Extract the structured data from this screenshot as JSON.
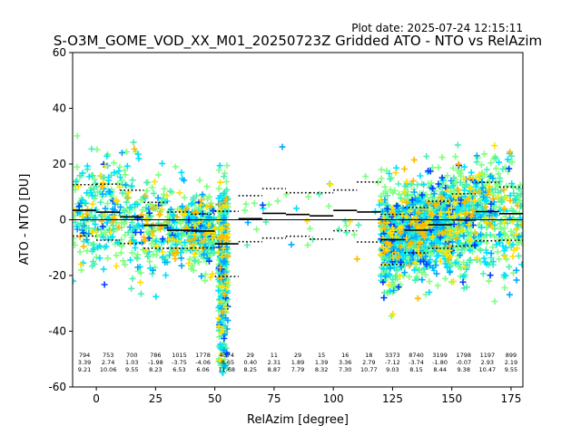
{
  "plot_date": "Plot date: 2025-07-24 12:15:11",
  "chart_data": {
    "type": "scatter",
    "title": "S-O3M_GOME_VOD_XX_M01_20250723Z Gridded ATO - NTO vs RelAzim",
    "xlabel": "RelAzim [degree]",
    "ylabel": "ATO - NTO [DU]",
    "xlim": [
      -10,
      180
    ],
    "ylim": [
      -60,
      60
    ],
    "xticks": [
      0,
      25,
      50,
      75,
      100,
      125,
      150,
      175
    ],
    "yticks": [
      -60,
      -40,
      -20,
      0,
      20,
      40,
      60
    ],
    "grid": false,
    "reference_line": 0,
    "marker": "+",
    "point_colors": [
      "#7fff7f",
      "#48f0b0",
      "#00e0ff",
      "#00a8ff",
      "#0040ff",
      "#ffe000",
      "#ffb800"
    ],
    "bins": [
      {
        "x": -5,
        "n": "794",
        "mean": "3.39",
        "std": "9.21"
      },
      {
        "x": 5,
        "n": "753",
        "mean": "2.74",
        "std": "10.06"
      },
      {
        "x": 15,
        "n": "700",
        "mean": "1.03",
        "std": "9.55"
      },
      {
        "x": 25,
        "n": "786",
        "mean": "-1.98",
        "std": "8.23"
      },
      {
        "x": 35,
        "n": "1015",
        "mean": "-3.75",
        "std": "6.53"
      },
      {
        "x": 45,
        "n": "1778",
        "mean": "-4.06",
        "std": "6.06"
      },
      {
        "x": 55,
        "n": "4374",
        "mean": "-8.65",
        "std": "11.68"
      },
      {
        "x": 65,
        "n": "29",
        "mean": "0.40",
        "std": "8.25"
      },
      {
        "x": 75,
        "n": "11",
        "mean": "2.31",
        "std": "8.87"
      },
      {
        "x": 85,
        "n": "29",
        "mean": "1.89",
        "std": "7.79"
      },
      {
        "x": 95,
        "n": "15",
        "mean": "1.39",
        "std": "8.32"
      },
      {
        "x": 105,
        "n": "16",
        "mean": "3.36",
        "std": "7.30"
      },
      {
        "x": 115,
        "n": "18",
        "mean": "2.79",
        "std": "10.77"
      },
      {
        "x": 125,
        "n": "3373",
        "mean": "-7.12",
        "std": "9.03"
      },
      {
        "x": 135,
        "n": "8740",
        "mean": "-3.74",
        "std": "8.15"
      },
      {
        "x": 145,
        "n": "3199",
        "mean": "-1.80",
        "std": "8.44"
      },
      {
        "x": 155,
        "n": "1798",
        "mean": "-0.07",
        "std": "9.38"
      },
      {
        "x": 165,
        "n": "1197",
        "mean": "2.93",
        "std": "10.47"
      },
      {
        "x": 175,
        "n": "899",
        "mean": "2.19",
        "std": "9.55"
      }
    ]
  }
}
